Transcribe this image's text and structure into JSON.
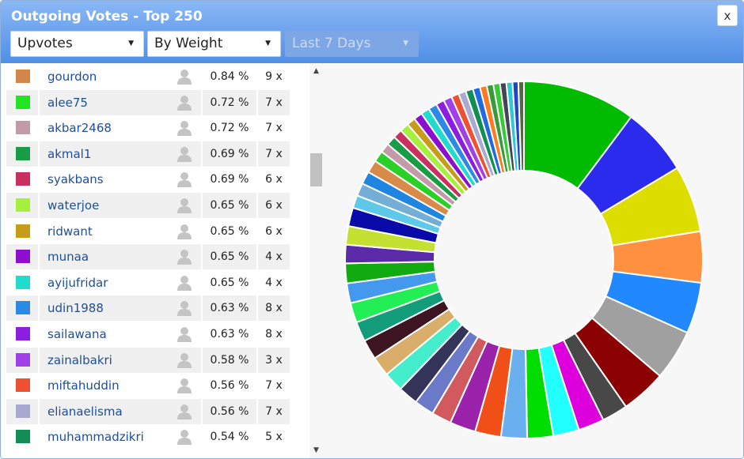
{
  "window": {
    "title": "Outgoing Votes - Top 250",
    "close_label": "x"
  },
  "filters": {
    "vote_type": "Upvotes",
    "sort_by": "By Weight",
    "period": "Last 7 Days"
  },
  "rows": [
    {
      "name": "gourdon",
      "pct": "0.84 %",
      "count": "9 x",
      "color": "#d2864a"
    },
    {
      "name": "alee75",
      "pct": "0.72 %",
      "count": "7 x",
      "color": "#20e520"
    },
    {
      "name": "akbar2468",
      "pct": "0.72 %",
      "count": "7 x",
      "color": "#c49aa9"
    },
    {
      "name": "akmal1",
      "pct": "0.69 %",
      "count": "7 x",
      "color": "#1a9b45"
    },
    {
      "name": "syakbans",
      "pct": "0.69 %",
      "count": "6 x",
      "color": "#c92f5f"
    },
    {
      "name": "waterjoe",
      "pct": "0.65 %",
      "count": "6 x",
      "color": "#a6ef3f"
    },
    {
      "name": "ridwant",
      "pct": "0.65 %",
      "count": "6 x",
      "color": "#c79c1a"
    },
    {
      "name": "munaa",
      "pct": "0.65 %",
      "count": "4 x",
      "color": "#8c0ecf"
    },
    {
      "name": "ayijufridar",
      "pct": "0.65 %",
      "count": "4 x",
      "color": "#20dccc"
    },
    {
      "name": "udin1988",
      "pct": "0.63 %",
      "count": "8 x",
      "color": "#2a8ae6"
    },
    {
      "name": "sailawana",
      "pct": "0.63 %",
      "count": "8 x",
      "color": "#8c1ee0"
    },
    {
      "name": "zainalbakri",
      "pct": "0.58 %",
      "count": "3 x",
      "color": "#a040e8"
    },
    {
      "name": "miftahuddin",
      "pct": "0.56 %",
      "count": "7 x",
      "color": "#ee5030"
    },
    {
      "name": "elianaelisma",
      "pct": "0.56 %",
      "count": "7 x",
      "color": "#a9a9d2"
    },
    {
      "name": "muhammadzikri",
      "pct": "0.54 %",
      "count": "5 x",
      "color": "#118d55"
    }
  ],
  "chart_data": {
    "type": "pie",
    "style": "donut",
    "slices": [
      {
        "value": 8.55,
        "color": "#00bb00"
      },
      {
        "value": 5.15,
        "color": "#2b2bee"
      },
      {
        "value": 5.05,
        "color": "#dddd00"
      },
      {
        "value": 3.87,
        "color": "#ff9040"
      },
      {
        "value": 3.87,
        "color": "#2288ff"
      },
      {
        "value": 3.83,
        "color": "#a0a0a0"
      },
      {
        "value": 3.41,
        "color": "#8b0000"
      },
      {
        "value": 1.96,
        "color": "#484848"
      },
      {
        "value": 1.96,
        "color": "#dd00dd"
      },
      {
        "value": 1.96,
        "color": "#22ffff"
      },
      {
        "value": 1.96,
        "color": "#00dd00"
      },
      {
        "value": 1.96,
        "color": "#6ab0ee"
      },
      {
        "value": 1.96,
        "color": "#f05018"
      },
      {
        "value": 1.96,
        "color": "#9b22aa"
      },
      {
        "value": 1.5,
        "color": "#d05a5e"
      },
      {
        "value": 1.5,
        "color": "#6a7ac8"
      },
      {
        "value": 1.5,
        "color": "#34345a"
      },
      {
        "value": 1.5,
        "color": "#44eecc"
      },
      {
        "value": 1.5,
        "color": "#d8ae6a"
      },
      {
        "value": 1.5,
        "color": "#3c1422"
      },
      {
        "value": 1.5,
        "color": "#139c7a"
      },
      {
        "value": 1.5,
        "color": "#22ee55"
      },
      {
        "value": 1.5,
        "color": "#4499ee"
      },
      {
        "value": 1.5,
        "color": "#11aa11"
      },
      {
        "value": 1.4,
        "color": "#5a2aa8"
      },
      {
        "value": 1.4,
        "color": "#c4e030"
      },
      {
        "value": 1.4,
        "color": "#0a0aa8"
      },
      {
        "value": 0.97,
        "color": "#5ec8e8"
      },
      {
        "value": 0.97,
        "color": "#74aed6"
      },
      {
        "value": 0.97,
        "color": "#1e86e0"
      },
      {
        "value": 0.97,
        "color": "#d88a48"
      },
      {
        "value": 0.84,
        "color": "#28d028"
      },
      {
        "value": 0.72,
        "color": "#c49aa9"
      },
      {
        "value": 0.72,
        "color": "#1a9b45"
      },
      {
        "value": 0.69,
        "color": "#c92f5f"
      },
      {
        "value": 0.69,
        "color": "#a6ef3f"
      },
      {
        "value": 0.65,
        "color": "#c79c1a"
      },
      {
        "value": 0.65,
        "color": "#8c0ecf"
      },
      {
        "value": 0.65,
        "color": "#20dccc"
      },
      {
        "value": 0.65,
        "color": "#2a8ae6"
      },
      {
        "value": 0.63,
        "color": "#8c1ee0"
      },
      {
        "value": 0.63,
        "color": "#a040e8"
      },
      {
        "value": 0.58,
        "color": "#ee5030"
      },
      {
        "value": 0.56,
        "color": "#a9a9d2"
      },
      {
        "value": 0.56,
        "color": "#118d55"
      },
      {
        "value": 0.54,
        "color": "#1e6ae0"
      },
      {
        "value": 0.52,
        "color": "#ff7a20"
      },
      {
        "value": 0.5,
        "color": "#3a9a3a"
      },
      {
        "value": 0.5,
        "color": "#33cc33"
      },
      {
        "value": 0.48,
        "color": "#444455"
      },
      {
        "value": 0.46,
        "color": "#2ec8d8"
      },
      {
        "value": 0.44,
        "color": "#2244cc"
      },
      {
        "value": 0.42,
        "color": "#556644"
      }
    ]
  }
}
